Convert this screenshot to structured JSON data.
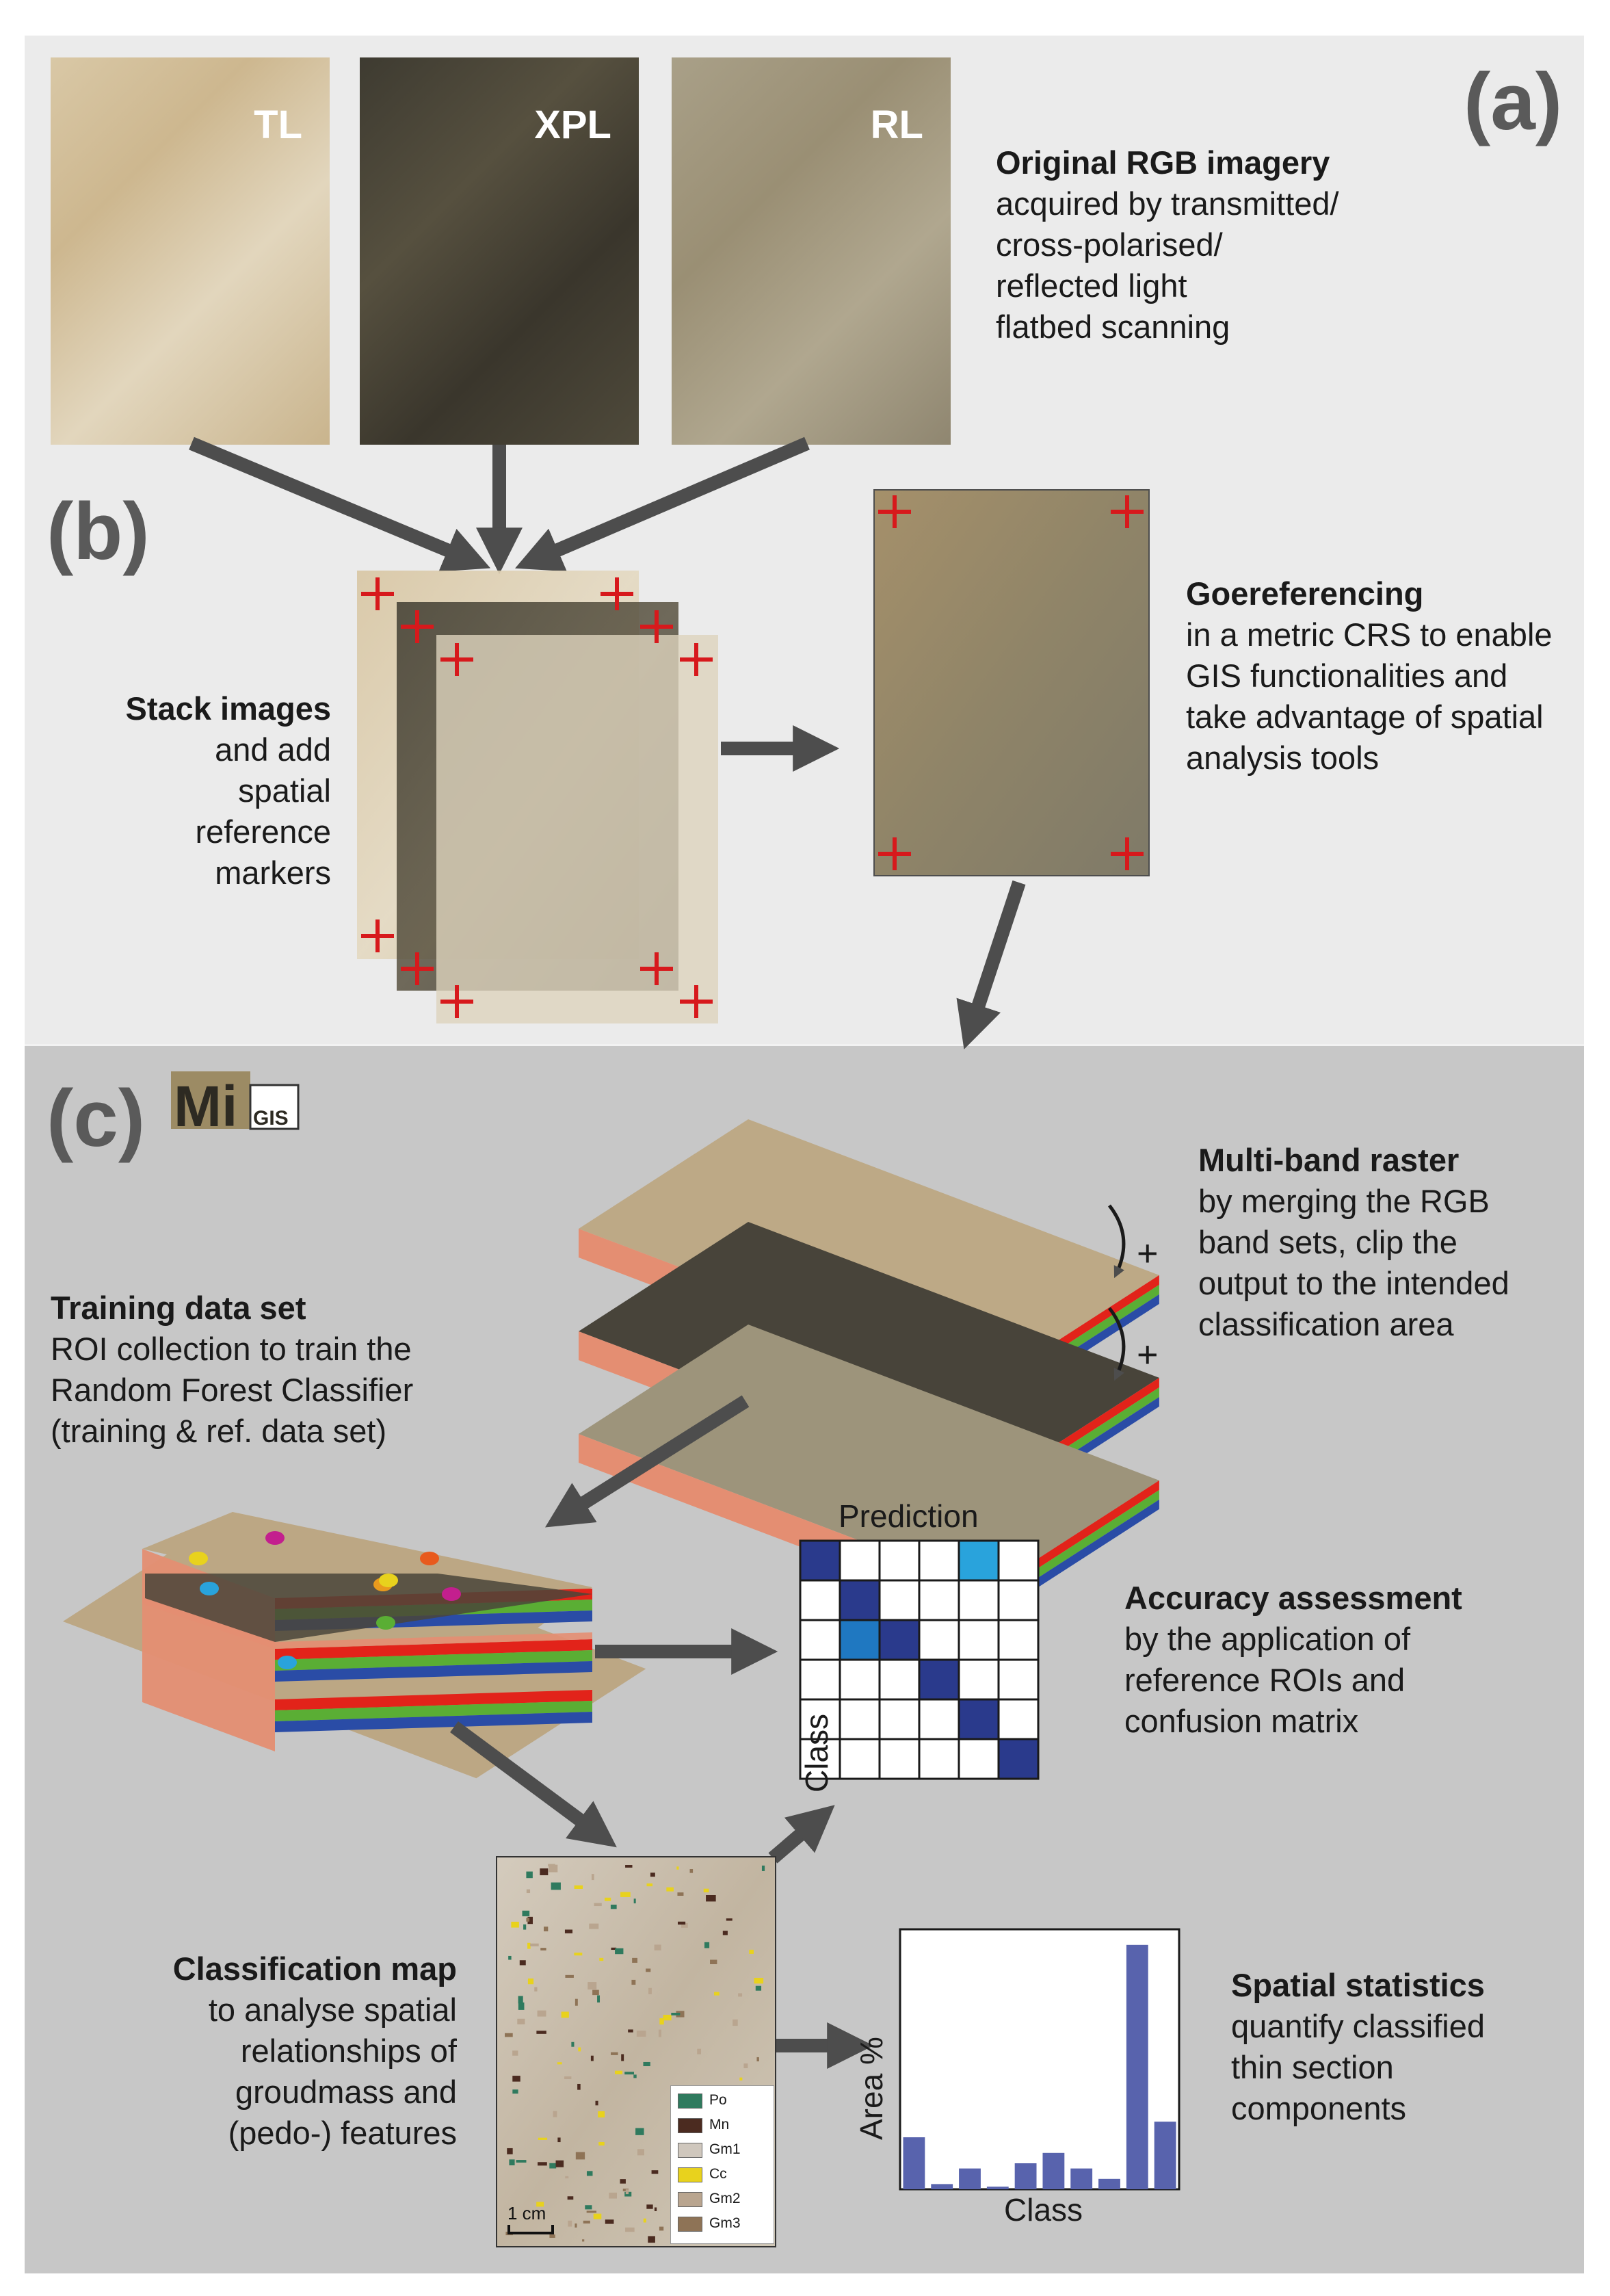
{
  "panels": {
    "a_label": "(a)",
    "b_label": "(b)",
    "c_label": "(c)"
  },
  "logo": {
    "text": "MiGIS"
  },
  "original_images": [
    {
      "label": "TL",
      "color": "#d6c4a2"
    },
    {
      "label": "XPL",
      "color": "#4a463a"
    },
    {
      "label": "RL",
      "color": "#a59a82"
    }
  ],
  "original_rgb": {
    "title": "Original RGB imagery",
    "lines": [
      "acquired by transmitted/",
      "cross-polarised/",
      "reflected light",
      "flatbed scanning"
    ]
  },
  "stack_images": {
    "title": "Stack images",
    "lines": [
      "and add",
      "spatial",
      "reference",
      "markers"
    ]
  },
  "georeferencing": {
    "title": "Goereferencing",
    "lines": [
      "in a metric CRS to enable",
      "GIS functionalities and",
      "take advantage of spatial",
      "analysis tools"
    ]
  },
  "multiband": {
    "title": "Multi-band raster",
    "lines": [
      "by merging the RGB",
      "band sets, clip the",
      "output to the intended",
      "classification area"
    ],
    "plus_signs": [
      "+",
      "+"
    ]
  },
  "training": {
    "title": "Training data set",
    "lines": [
      "ROI collection to train the",
      "Random Forest Classifier",
      "(training & ref. data set)"
    ]
  },
  "accuracy": {
    "title": "Accuracy assessment",
    "lines": [
      "by the application of",
      "reference ROIs and",
      "confusion matrix"
    ]
  },
  "confusion_matrix": {
    "x_title": "Prediction",
    "y_title": "Class",
    "size": 6,
    "cells": [
      [
        1,
        0,
        0,
        0,
        0.55,
        0
      ],
      [
        0,
        1,
        0,
        0,
        0,
        0
      ],
      [
        0,
        0.7,
        1,
        0,
        0,
        0
      ],
      [
        0,
        0,
        0,
        1,
        0,
        0
      ],
      [
        0,
        0,
        0,
        0,
        1,
        0
      ],
      [
        0,
        0,
        0,
        0,
        0,
        1
      ]
    ]
  },
  "classification": {
    "title": "Classification map",
    "lines": [
      "to analyse spatial",
      "relationships of",
      "groudmass and",
      "(pedo-) features"
    ],
    "scale_label": "1 cm",
    "legend": [
      {
        "name": "Po",
        "color": "#2f7a5e"
      },
      {
        "name": "Mn",
        "color": "#4b2b20"
      },
      {
        "name": "Gm1",
        "color": "#cfc7bd"
      },
      {
        "name": "Cc",
        "color": "#e8d21d"
      },
      {
        "name": "Gm2",
        "color": "#b9a58f"
      },
      {
        "name": "Gm3",
        "color": "#8e7356"
      }
    ]
  },
  "spatial": {
    "title": "Spatial statistics",
    "lines": [
      "quantify classified",
      "thin section",
      "components"
    ]
  },
  "chart_data": {
    "type": "bar",
    "xlabel": "Class",
    "ylabel": "Area %",
    "categories": [
      "",
      "",
      "",
      "",
      "",
      "",
      "",
      "",
      "",
      ""
    ],
    "values": [
      20,
      2,
      8,
      1,
      10,
      14,
      8,
      4,
      94,
      26
    ],
    "ylim": [
      0,
      100
    ],
    "bar_color": "#5863ad"
  },
  "colors": {
    "arrow": "#4d4d4d",
    "marker": "#d7191c",
    "band_red": "#e2231a",
    "band_green": "#5aae34",
    "band_blue": "#2a4ca6",
    "side": "#e48e72"
  }
}
